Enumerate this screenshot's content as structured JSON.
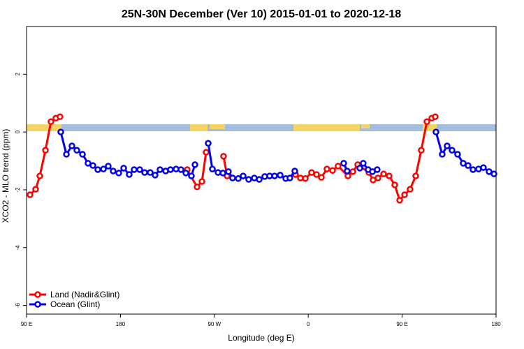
{
  "chart_data": {
    "type": "line",
    "title": "25N-30N December (Ver 10)   2015-01-01 to 2020-12-18",
    "xlabel": "Longitude (deg E)",
    "ylabel": "XCO2 - MLO trend (ppm)",
    "xlim": [
      90,
      540
    ],
    "xticks": [
      {
        "value": 90,
        "label": "90 E"
      },
      180,
      {
        "value": 270,
        "label": "90 W"
      },
      {
        "value": 360,
        "label": "0"
      },
      {
        "value": 450,
        "label": "90 E"
      },
      {
        "value": 540,
        "label": "180"
      }
    ],
    "ylim": [
      -6.3,
      3.65
    ],
    "yticks": [
      -6,
      -4,
      -2,
      0,
      2
    ],
    "legend": "bottom-left",
    "series": [
      {
        "name": "Land (Nadir&Glint)",
        "color": "#ff0000",
        "x": [
          93.3,
          98.7,
          102.7,
          108.1,
          113.4,
          118.1,
          122.1,
          180,
          244.0,
          253.4,
          258.1,
          262.1,
          270,
          278.8,
          282.2,
          300,
          347.8,
          352.5,
          357.2,
          363.2,
          367.9,
          372.6,
          377.9,
          383.3,
          388.6,
          398.0,
          402.7,
          407.4,
          418.1,
          422.1,
          426.8,
          432.2,
          437.5,
          442.9,
          447.6,
          452.3,
          457.6,
          463.0,
          468.3,
          473.7,
          478.4,
          481.7
        ],
        "values": [
          -2.17,
          -1.98,
          -1.52,
          -0.63,
          0.36,
          0.48,
          0.53,
          null,
          -1.3,
          -1.9,
          -1.71,
          -0.7,
          null,
          -0.84,
          -1.52,
          null,
          -1.47,
          -1.59,
          -1.61,
          -1.4,
          -1.47,
          -1.57,
          -1.28,
          -1.33,
          -1.18,
          -1.52,
          -1.37,
          -1.13,
          -1.4,
          -1.66,
          -1.59,
          -1.45,
          -1.52,
          -1.83,
          -2.36,
          -2.17,
          -1.98,
          -1.52,
          -0.63,
          0.36,
          0.48,
          0.53
        ]
      },
      {
        "name": "Ocean (Glint)",
        "color": "#0000ee",
        "x": [
          122.8,
          128.2,
          133.5,
          138.2,
          143.6,
          148.9,
          153.6,
          158.3,
          163.7,
          168.3,
          173.0,
          178.4,
          183.1,
          188.4,
          193.1,
          198.5,
          203.2,
          208.5,
          213.2,
          217.9,
          223.3,
          227.9,
          233.3,
          238.0,
          242.7,
          248.0,
          251.4,
          255,
          264.1,
          268.1,
          273.5,
          278.2,
          283.5,
          287.5,
          292.9,
          297.6,
          302.9,
          308.3,
          313.0,
          318.3,
          323.0,
          327.7,
          333.1,
          338.4,
          342.4,
          347.1,
          380,
          394.0,
          397.3,
          400,
          409.4,
          412.7,
          417.4,
          421.5,
          426.1,
          450,
          482.4,
          488.4,
          493.1,
          497.8,
          503.1,
          508.5,
          513.2,
          517.9,
          523.2,
          527.9,
          533.3,
          538.0
        ],
        "values": [
          0.0,
          -0.77,
          -0.48,
          -0.63,
          -0.77,
          -1.08,
          -1.16,
          -1.3,
          -1.28,
          -1.18,
          -1.35,
          -1.42,
          -1.25,
          -1.47,
          -1.3,
          -1.3,
          -1.4,
          -1.4,
          -1.49,
          -1.3,
          -1.35,
          -1.3,
          -1.28,
          -1.3,
          -1.42,
          -1.52,
          -1.13,
          null,
          -0.39,
          -1.28,
          -1.4,
          -1.42,
          -1.37,
          -1.59,
          -1.61,
          -1.52,
          -1.64,
          -1.59,
          -1.64,
          -1.54,
          -1.52,
          -1.52,
          -1.49,
          -1.61,
          -1.59,
          -1.35,
          null,
          -1.08,
          -1.35,
          null,
          -1.25,
          -1.08,
          -1.3,
          -1.37,
          -1.3,
          null,
          0.0,
          -0.77,
          -0.48,
          -0.63,
          -0.77,
          -1.08,
          -1.16,
          -1.3,
          -1.28,
          -1.23,
          -1.37,
          -1.45
        ]
      }
    ]
  }
}
